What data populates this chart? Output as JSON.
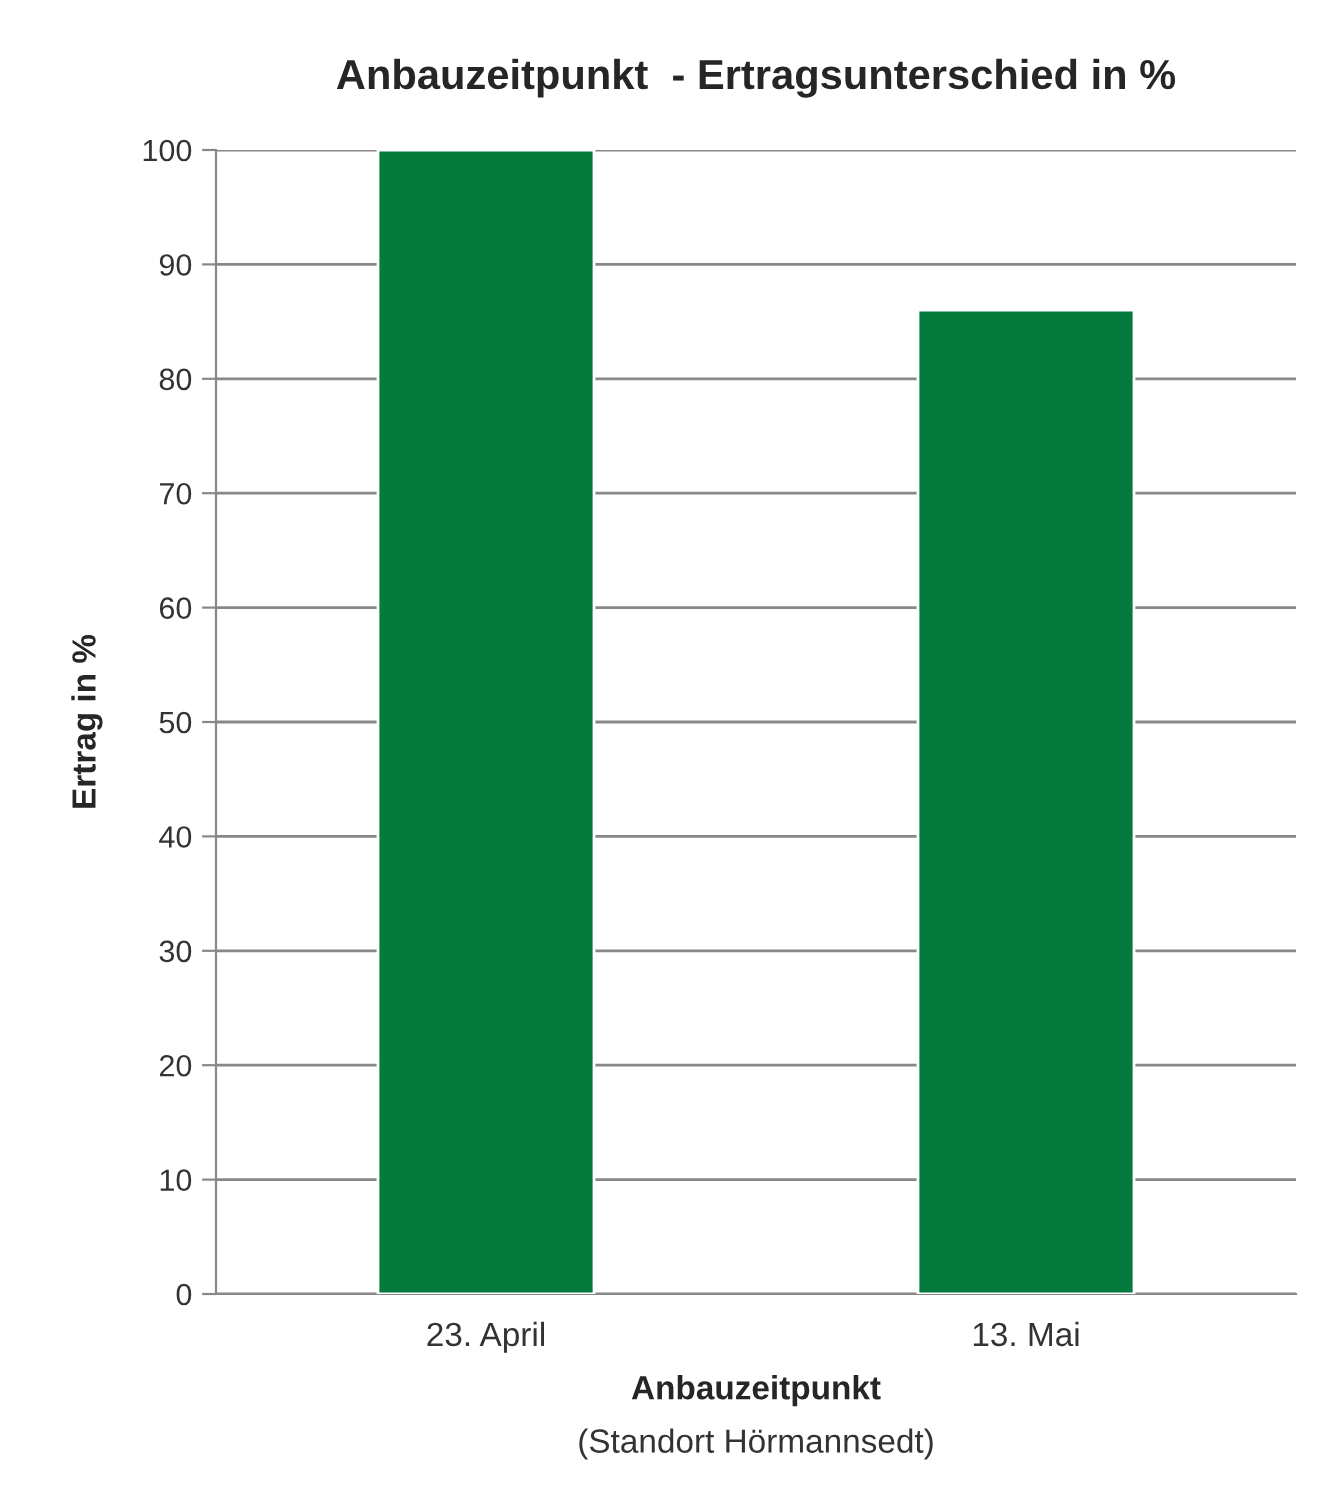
{
  "chart_data": {
    "type": "bar",
    "title": "Anbauzeitpunkt  - Ertragsunterschied in %",
    "xlabel": "Anbauzeitpunkt",
    "annotations": [
      "(Standort Hörmannsedt)"
    ],
    "ylabel": "Ertrag in %",
    "categories": [
      "23. April",
      "13. Mai"
    ],
    "values": [
      100,
      86
    ],
    "color": "#047a3c",
    "ylim": [
      0,
      100
    ],
    "yticks": [
      0,
      10,
      20,
      30,
      40,
      50,
      60,
      70,
      80,
      90,
      100
    ],
    "grid": "y"
  }
}
